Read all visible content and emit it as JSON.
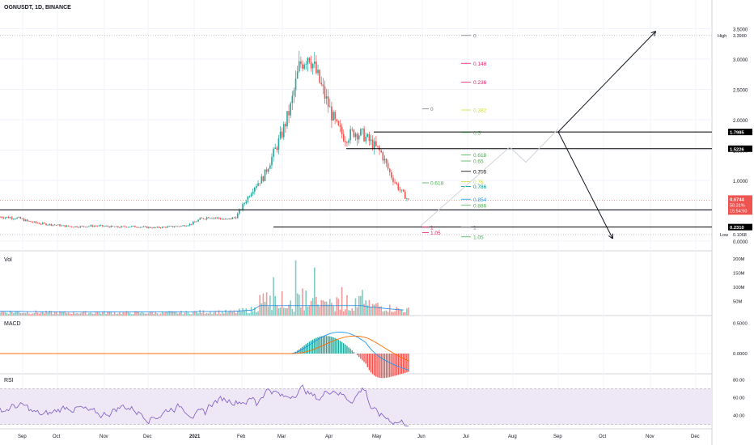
{
  "header": {
    "symbol_title": "OGNUSDT, 1D, BINANCE"
  },
  "panes": {
    "vol_label": "Vol",
    "macd_label": "MACD",
    "rsi_label": "RSI"
  },
  "colors": {
    "up": "#26a69a",
    "down": "#ef5350",
    "fib_red": "#e91e63",
    "fib_green": "#4caf50",
    "fib_yellow": "#cddc39",
    "fib_teal": "#009688",
    "fib_blue": "#2196f3",
    "fib_grey": "#787b86",
    "macd_line": "#2196f3",
    "signal_line": "#ff6d00",
    "rsi_line": "#7e57c2",
    "rsi_band": "#ede7f6",
    "hline": "#000000",
    "price_badge": "#ef5350"
  },
  "chart_data": [
    {
      "type": "candlestick",
      "title": "OGNUSDT, 1D, BINANCE",
      "x_tick_labels": [
        "Sep",
        "Oct",
        "Nov",
        "Dec",
        "2021",
        "Feb",
        "Mar",
        "Apr",
        "May",
        "Jun",
        "Jul",
        "Aug",
        "Sep",
        "Oct",
        "Nov",
        "Dec"
      ],
      "y_tick_labels": [
        "3.5000",
        "3.0000",
        "2.5000",
        "2.0000",
        "1.5000",
        "1.0000",
        "0.5000",
        "0.0000"
      ],
      "y_range": [
        0,
        3.5
      ],
      "high": {
        "label": "High",
        "value": "3.3900"
      },
      "low": {
        "label": "Low",
        "value": "0.1068"
      },
      "current_price": {
        "value": "0.6744",
        "change": "58.31%",
        "countdown": "15:54:50"
      },
      "price_levels": [
        "1.7985",
        "1.5226",
        "0.5148",
        "0.2310"
      ],
      "approx_close_series": [
        0.4,
        0.39,
        0.38,
        0.33,
        0.3,
        0.28,
        0.27,
        0.25,
        0.24,
        0.24,
        0.25,
        0.25,
        0.24,
        0.23,
        0.24,
        0.24,
        0.23,
        0.22,
        0.23,
        0.24,
        0.25,
        0.28,
        0.36,
        0.4,
        0.38,
        0.35,
        0.4,
        0.65,
        0.9,
        1.05,
        1.4,
        1.75,
        2.2,
        2.9,
        3.1,
        2.7,
        2.3,
        1.9,
        1.7,
        1.8,
        1.75,
        1.6,
        1.45,
        1.1,
        0.85,
        0.67
      ],
      "fib_retracement_1": {
        "levels": [
          {
            "label": "0",
            "color": "#787b86",
            "value": 3.39
          },
          {
            "label": "0.148",
            "color": "#e91e63",
            "value": 2.93
          },
          {
            "label": "0.236",
            "color": "#e91e63",
            "value": 2.62
          },
          {
            "label": "0.382",
            "color": "#cddc39",
            "value": 2.16
          },
          {
            "label": "0.5",
            "color": "#4caf50",
            "value": 1.79
          },
          {
            "label": "0.618",
            "color": "#4caf50",
            "value": 1.42
          },
          {
            "label": "0.65",
            "color": "#4caf50",
            "value": 1.32
          },
          {
            "label": "0.705",
            "color": "#000000",
            "value": 1.15
          },
          {
            "label": "0.76",
            "color": "#cddc39",
            "value": 0.98
          },
          {
            "label": "0.786",
            "color": "#009688",
            "value": 0.9
          },
          {
            "label": "0.854",
            "color": "#2196f3",
            "value": 0.69
          },
          {
            "label": "0.886",
            "color": "#4caf50",
            "value": 0.59
          },
          {
            "label": "1",
            "color": "#787b86",
            "value": 0.23
          },
          {
            "label": "1.05",
            "color": "#4caf50",
            "value": 0.07
          }
        ]
      },
      "fib_retracement_2": {
        "levels": [
          {
            "label": "0",
            "color": "#787b86",
            "value": 2.18
          },
          {
            "label": "0.618",
            "color": "#4caf50",
            "value": 0.96
          },
          {
            "label": "1",
            "color": "#e91e63",
            "value": 0.23
          },
          {
            "label": "1.05",
            "color": "#e91e63",
            "value": 0.14
          }
        ]
      }
    },
    {
      "type": "bar",
      "title": "Vol",
      "y_tick_labels": [
        "200M",
        "150M",
        "100M",
        "50M"
      ]
    },
    {
      "type": "line",
      "title": "MACD",
      "y_tick_labels": [
        "0.5000",
        "0.0000"
      ]
    },
    {
      "type": "line",
      "title": "RSI",
      "y_tick_labels": [
        "80.00",
        "60.00",
        "40.00"
      ]
    }
  ]
}
